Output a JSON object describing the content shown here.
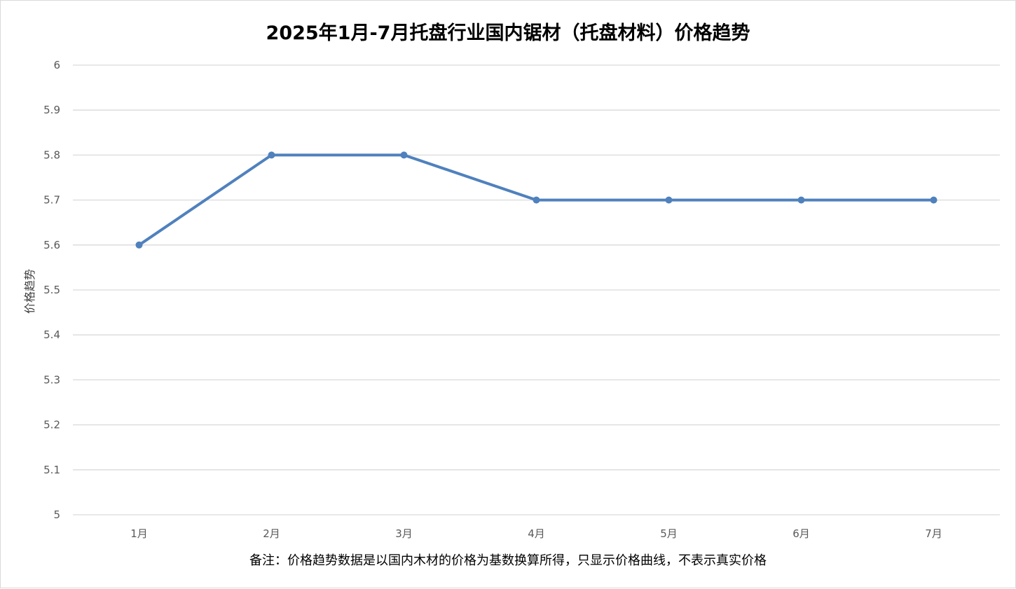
{
  "chart_data": {
    "type": "line",
    "title": "2025年1月-7月托盘行业国内锯材（托盘材料）价格趋势",
    "xlabel": "",
    "ylabel": "价格趋势",
    "categories": [
      "1月",
      "2月",
      "3月",
      "4月",
      "5月",
      "6月",
      "7月"
    ],
    "series": [
      {
        "values": [
          5.6,
          5.8,
          5.8,
          5.7,
          5.7,
          5.7,
          5.7
        ]
      }
    ],
    "ylim": [
      5,
      6
    ],
    "yticks": [
      "5",
      "5.1",
      "5.2",
      "5.3",
      "5.4",
      "5.5",
      "5.6",
      "5.7",
      "5.8",
      "5.9",
      "6"
    ],
    "grid": true,
    "legend": "none",
    "colors": {
      "line": "#4f81bd",
      "grid": "#d9d9d9"
    },
    "note": "备注：价格趋势数据是以国内木材的价格为基数换算所得，只显示价格曲线，不表示真实价格"
  }
}
